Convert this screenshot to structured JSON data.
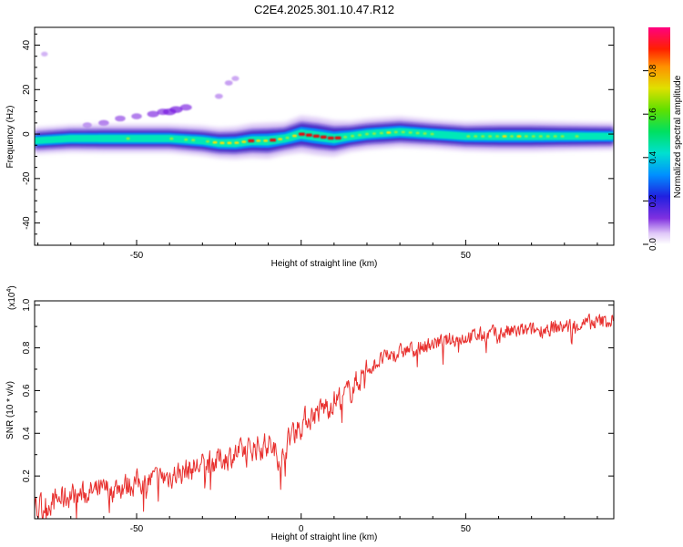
{
  "figure": {
    "title": "C2E4.2025.301.10.47.R12"
  },
  "colors": {
    "snr_line": "#e8302e",
    "axis": "#000000",
    "ridge_core": "#e01010",
    "ridge_mid": "#ffe000",
    "ridge_band": "#00e8b8",
    "ridge_halo": "#3010c0",
    "scatter": "#7a20e0"
  },
  "chart_data": [
    {
      "type": "heatmap",
      "xlabel": "Height of straight line (km)",
      "ylabel": "Frequency (Hz)",
      "xlim": [
        -81,
        95
      ],
      "ylim": [
        -50,
        48
      ],
      "xticks": [
        -50,
        0,
        50
      ],
      "xtick_labels": [
        "-50",
        "",
        "50"
      ],
      "yticks": [
        -40,
        -20,
        0,
        20,
        40
      ],
      "ytick_labels": [
        "-40",
        "-20",
        "0",
        "20",
        "40"
      ],
      "colorbar": {
        "label": "Normalized spectral amplitude",
        "range": [
          0,
          1
        ],
        "ticks": [
          0,
          0.2,
          0.4,
          0.6,
          0.8
        ],
        "tick_labels": [
          "0.0",
          "0.2",
          "0.4",
          "0.6",
          "0.8"
        ]
      },
      "ridge": {
        "x": [
          -81,
          -70,
          -60,
          -50,
          -40,
          -30,
          -25,
          -20,
          -15,
          -10,
          -5,
          0,
          5,
          10,
          15,
          20,
          30,
          40,
          50,
          60,
          70,
          80,
          95
        ],
        "frequency": [
          -3,
          -2,
          -2,
          -2,
          -2,
          -3,
          -4,
          -4,
          -3,
          -3,
          -2,
          0,
          -1,
          -2,
          -1,
          0,
          1,
          0,
          -1,
          -1,
          -1,
          -1,
          -1
        ],
        "amplitude": [
          0.35,
          0.4,
          0.45,
          0.45,
          0.45,
          0.55,
          0.6,
          0.7,
          0.8,
          0.9,
          0.7,
          0.95,
          1.0,
          0.9,
          0.6,
          0.6,
          0.6,
          0.5,
          0.5,
          0.6,
          0.6,
          0.5,
          0.4
        ]
      },
      "scatter": {
        "x": [
          -65,
          -60,
          -55,
          -50,
          -45,
          -42,
          -40,
          -38,
          -35,
          -25,
          -22,
          -20,
          -78
        ],
        "frequency": [
          4,
          5,
          7,
          8,
          9,
          10,
          10,
          11,
          12,
          17,
          23,
          25,
          36
        ],
        "amplitude": [
          0.15,
          0.2,
          0.2,
          0.2,
          0.25,
          0.25,
          0.3,
          0.3,
          0.25,
          0.1,
          0.1,
          0.08,
          0.05
        ]
      }
    },
    {
      "type": "line",
      "xlabel": "Height of straight line (km)",
      "ylabel": "SNR (10 * v/v)",
      "scale_label": "(x10",
      "scale_exponent": "4",
      "xlim": [
        -81,
        95
      ],
      "ylim": [
        0,
        1.02
      ],
      "xticks": [
        -50,
        0,
        50
      ],
      "xtick_labels": [
        "-50",
        "0",
        "50"
      ],
      "yticks": [
        0.2,
        0.4,
        0.6,
        0.8,
        1.0
      ],
      "ytick_labels": [
        "0.2",
        "0.4",
        "0.6",
        "0.8",
        "1.0"
      ],
      "series": [
        {
          "trend_x": [
            -81,
            -70,
            -60,
            -50,
            -40,
            -30,
            -20,
            -15,
            -10,
            -6,
            -3,
            0,
            5,
            10,
            15,
            20,
            25,
            30,
            40,
            50,
            60,
            70,
            80,
            90,
            95
          ],
          "trend_y": [
            0.05,
            0.11,
            0.13,
            0.17,
            0.2,
            0.25,
            0.3,
            0.33,
            0.35,
            0.28,
            0.4,
            0.45,
            0.5,
            0.55,
            0.6,
            0.7,
            0.75,
            0.78,
            0.82,
            0.85,
            0.87,
            0.88,
            0.9,
            0.92,
            0.93
          ],
          "noise": 0.05,
          "n_points": 900
        }
      ]
    }
  ]
}
